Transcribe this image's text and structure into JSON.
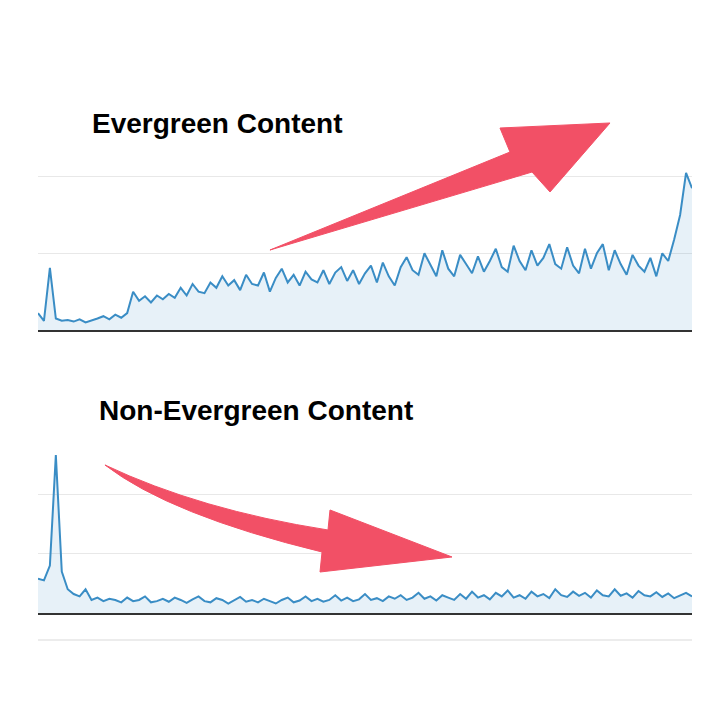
{
  "chart_data": [
    {
      "type": "area",
      "title": "Evergreen Content",
      "color": "#3a8dc5",
      "values": [
        22,
        12,
        81,
        15,
        12,
        13,
        11,
        14,
        10,
        12,
        15,
        18,
        14,
        20,
        16,
        22,
        50,
        38,
        44,
        36,
        45,
        40,
        47,
        42,
        55,
        45,
        60,
        50,
        48,
        62,
        55,
        70,
        58,
        65,
        52,
        72,
        60,
        58,
        75,
        50,
        68,
        80,
        62,
        72,
        58,
        76,
        66,
        62,
        78,
        60,
        75,
        82,
        64,
        78,
        60,
        74,
        84,
        62,
        88,
        70,
        58,
        82,
        95,
        78,
        72,
        100,
        85,
        70,
        104,
        80,
        70,
        98,
        86,
        74,
        96,
        76,
        90,
        106,
        82,
        76,
        110,
        90,
        78,
        104,
        84,
        94,
        112,
        86,
        80,
        108,
        84,
        74,
        106,
        80,
        100,
        112,
        78,
        104,
        86,
        72,
        98,
        84,
        76,
        94,
        70,
        100,
        90,
        118,
        150,
        205,
        185
      ],
      "xlim": [
        0,
        110
      ],
      "ylim": [
        0,
        300
      ],
      "yticks": [
        0,
        100,
        200,
        300
      ],
      "grid": true,
      "tick_labels": false
    },
    {
      "type": "area",
      "title": "Non-Evergreen Content",
      "color": "#3a8dc5",
      "values": [
        58,
        55,
        80,
        266,
        70,
        40,
        32,
        28,
        40,
        22,
        26,
        20,
        24,
        22,
        18,
        26,
        20,
        22,
        28,
        18,
        20,
        24,
        19,
        26,
        22,
        17,
        23,
        28,
        20,
        18,
        25,
        22,
        16,
        21,
        27,
        19,
        22,
        18,
        24,
        20,
        16,
        22,
        26,
        18,
        21,
        28,
        20,
        24,
        19,
        22,
        30,
        21,
        26,
        20,
        23,
        32,
        22,
        25,
        20,
        28,
        24,
        30,
        22,
        26,
        34,
        24,
        28,
        21,
        30,
        26,
        22,
        32,
        24,
        36,
        26,
        30,
        23,
        34,
        28,
        38,
        26,
        30,
        24,
        36,
        28,
        32,
        25,
        40,
        30,
        27,
        36,
        29,
        34,
        26,
        38,
        30,
        28,
        40,
        29,
        33,
        26,
        37,
        30,
        28,
        35,
        27,
        33,
        25,
        30,
        34,
        28
      ],
      "xlim": [
        0,
        110
      ],
      "ylim": [
        0,
        300
      ],
      "yticks": [
        0,
        100,
        200,
        300
      ],
      "grid": true,
      "tick_labels": false
    }
  ]
}
